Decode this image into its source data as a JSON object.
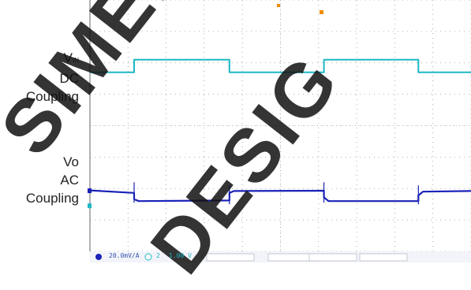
{
  "labels": {
    "vin_main": "V",
    "vin_sub": "IN",
    "vin_dc": "DC",
    "vin_coupling": "Coupling",
    "vo": "Vo",
    "vo_ac": "AC",
    "vo_coupling": "Coupling"
  },
  "watermark": {
    "line1": "SIMEN",
    "line2": "DESIG"
  },
  "status_bar": {
    "ch1_scale": "20.0mV/A",
    "ch2_index": "2",
    "ch2_scale": "1.00 V"
  },
  "colors": {
    "grid": "#9a9a9a",
    "ch_vin": "#1cb8c4",
    "ch_vo": "#1a22b8",
    "trigger_marker": "#f08a00"
  },
  "chart_data": {
    "type": "line",
    "title": "",
    "xlabel": "",
    "ylabel": "",
    "grid": true,
    "grid_divisions_x": 10,
    "grid_divisions_y": 8,
    "xlim": [
      0,
      10
    ],
    "ylim": [
      0,
      8
    ],
    "series": [
      {
        "name": "VIN",
        "x": [
          0,
          1.16,
          1.16,
          3.66,
          3.66,
          6.14,
          6.14,
          8.62,
          8.62,
          10
        ],
        "y": [
          5.7,
          5.7,
          6.1,
          6.1,
          5.7,
          5.7,
          6.1,
          6.1,
          5.7,
          5.7
        ]
      },
      {
        "name": "Vo",
        "x": [
          0,
          1.16,
          1.16,
          1.28,
          3.66,
          3.66,
          3.78,
          6.14,
          6.14,
          6.26,
          8.62,
          8.62,
          8.74,
          10
        ],
        "y": [
          1.94,
          1.86,
          1.66,
          1.6,
          1.62,
          1.86,
          1.92,
          1.93,
          1.72,
          1.6,
          1.6,
          1.78,
          1.9,
          1.92
        ]
      }
    ]
  }
}
